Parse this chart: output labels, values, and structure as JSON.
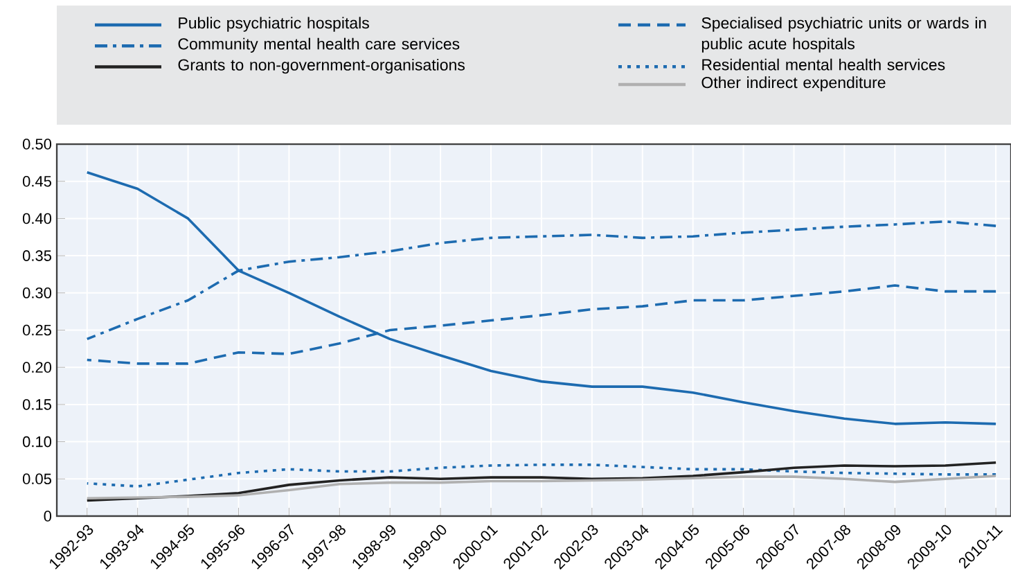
{
  "chart_data": {
    "type": "line",
    "categories": [
      "1992-93",
      "1993-94",
      "1994-95",
      "1995-96",
      "1996-97",
      "1997-98",
      "1998-99",
      "1999-00",
      "2000-01",
      "2001-02",
      "2002-03",
      "2003-04",
      "2004-05",
      "2005-06",
      "2006-07",
      "2007-08",
      "2008-09",
      "2009-10",
      "2010-11"
    ],
    "ylim": [
      0,
      0.5
    ],
    "yticks": [
      0,
      {
        "value": 0.05,
        "label": "0.05"
      },
      {
        "value": 0.1,
        "label": "0.10"
      },
      {
        "value": 0.15,
        "label": "0.15"
      },
      {
        "value": 0.2,
        "label": "0.20"
      },
      {
        "value": 0.25,
        "label": "0.25"
      },
      {
        "value": 0.3,
        "label": "0.30"
      },
      {
        "value": 0.35,
        "label": "0.35"
      },
      {
        "value": 0.4,
        "label": "0.40"
      },
      {
        "value": 0.45,
        "label": "0.45"
      },
      {
        "value": 0.5,
        "label": "0.50"
      }
    ],
    "grid": true,
    "legend": "top",
    "series": [
      {
        "name": "Public psychiatric hospitals",
        "color": "#1d6bb0",
        "line_style": "solid",
        "values": [
          0.462,
          0.44,
          0.4,
          0.33,
          0.3,
          0.268,
          0.238,
          0.216,
          0.195,
          0.181,
          0.174,
          0.174,
          0.166,
          0.153,
          0.141,
          0.131,
          0.124,
          0.126,
          0.124
        ]
      },
      {
        "name": "Specialised psychiatric units or wards in public acute hospitals",
        "color": "#1d6bb0",
        "line_style": "dashed",
        "values": [
          0.21,
          0.205,
          0.205,
          0.22,
          0.218,
          0.232,
          0.25,
          0.256,
          0.263,
          0.27,
          0.278,
          0.282,
          0.29,
          0.29,
          0.296,
          0.302,
          0.31,
          0.302,
          0.302
        ]
      },
      {
        "name": "Community mental health care services",
        "color": "#1d6bb0",
        "line_style": "dashdot",
        "values": [
          0.238,
          0.265,
          0.29,
          0.33,
          0.342,
          0.348,
          0.356,
          0.367,
          0.374,
          0.376,
          0.378,
          0.374,
          0.376,
          0.381,
          0.385,
          0.389,
          0.392,
          0.396,
          0.39
        ]
      },
      {
        "name": "Residential mental health services",
        "color": "#1d6bb0",
        "line_style": "dotted",
        "values": [
          0.044,
          0.04,
          0.049,
          0.058,
          0.063,
          0.06,
          0.06,
          0.065,
          0.068,
          0.069,
          0.069,
          0.066,
          0.063,
          0.063,
          0.06,
          0.058,
          0.057,
          0.056,
          0.056
        ]
      },
      {
        "name": "Grants to non-government-organisations",
        "color": "#222222",
        "line_style": "solid",
        "values": [
          0.021,
          0.024,
          0.027,
          0.031,
          0.042,
          0.048,
          0.052,
          0.05,
          0.052,
          0.052,
          0.05,
          0.051,
          0.054,
          0.059,
          0.065,
          0.068,
          0.067,
          0.068,
          0.072
        ]
      },
      {
        "name": "Other indirect expenditure",
        "color": "#b0b0b0",
        "line_style": "solid",
        "values": [
          0.024,
          0.025,
          0.026,
          0.028,
          0.035,
          0.043,
          0.045,
          0.045,
          0.047,
          0.047,
          0.048,
          0.049,
          0.051,
          0.053,
          0.053,
          0.05,
          0.046,
          0.05,
          0.054
        ]
      }
    ]
  }
}
